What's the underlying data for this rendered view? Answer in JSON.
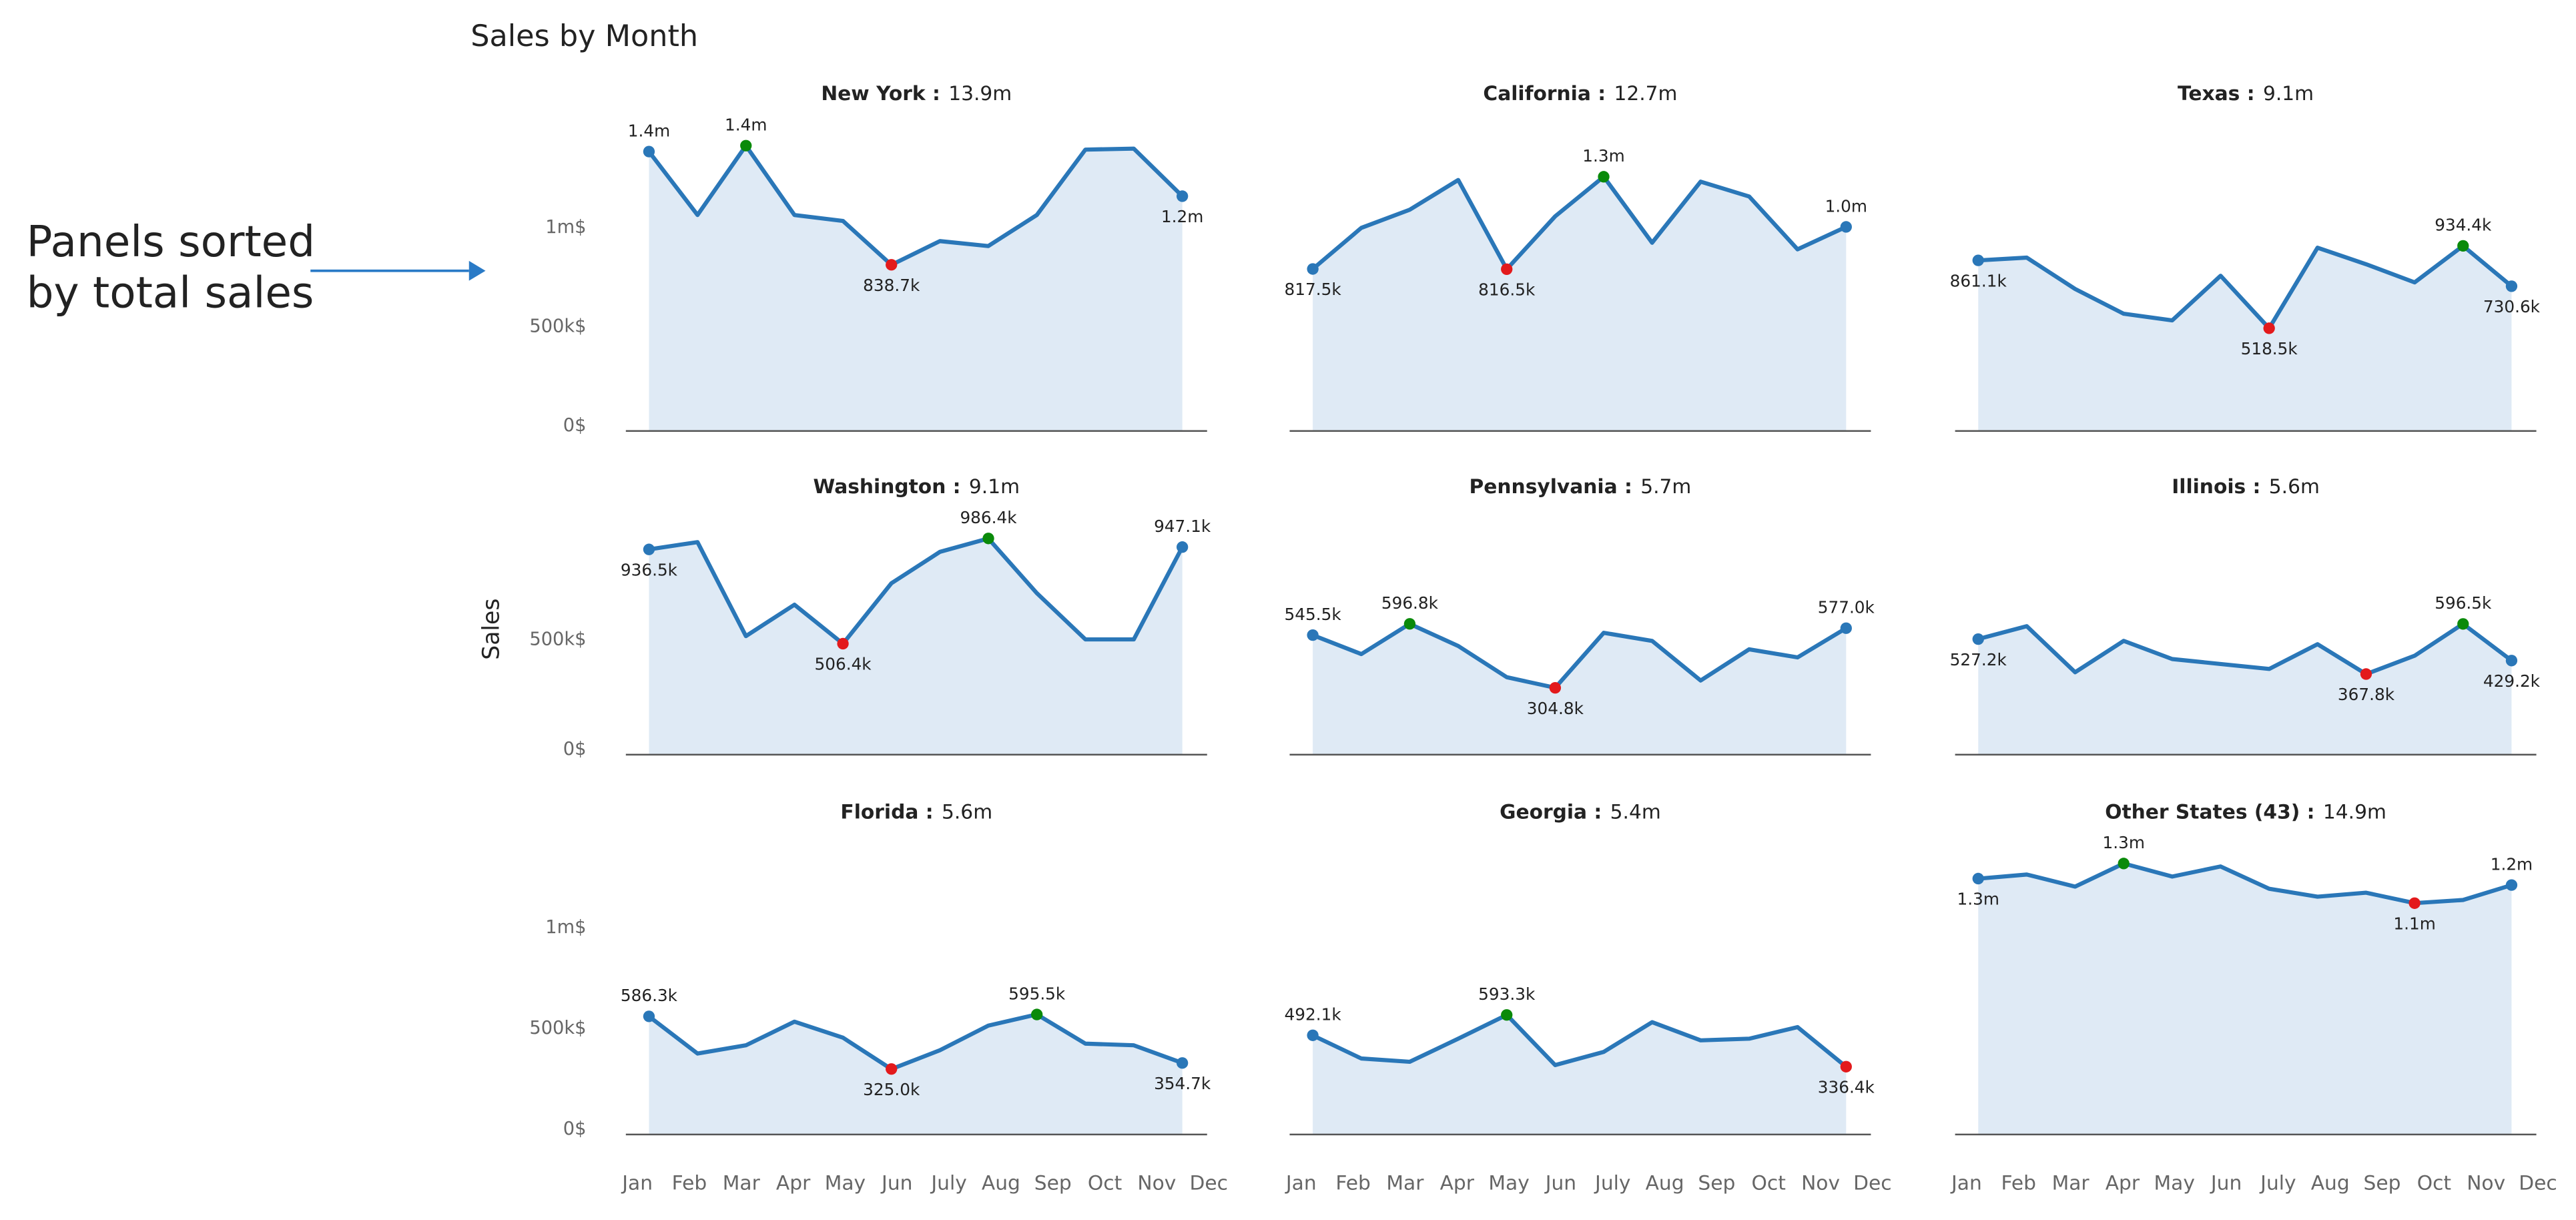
{
  "title": "Sales by Month",
  "annotation": [
    "Panels sorted",
    "by total sales"
  ],
  "ylabel": "Sales",
  "chart_data": [
    {
      "type": "area",
      "title": "New York :",
      "total": "13.9m",
      "color": "#2a77b8",
      "fill": "#dfeaf5",
      "max_color": "#0a8a0a",
      "min_color": "#e31a1c",
      "values": [
        1410000,
        1090000,
        1440000,
        1090000,
        1060000,
        838700,
        958000,
        933000,
        1090000,
        1420000,
        1425000,
        1185000
      ],
      "value_labels": [
        "1.4m",
        null,
        "1.4m",
        null,
        null,
        "838.7k",
        null,
        null,
        null,
        null,
        null,
        "1.2m"
      ],
      "ylim": [
        0,
        1600000
      ],
      "yticks": [
        {
          "value": 0,
          "label": "0$"
        },
        {
          "value": 500000,
          "label": "500k$"
        },
        {
          "value": 1000000,
          "label": "1m$"
        }
      ]
    },
    {
      "type": "area",
      "title": "California :",
      "total": "12.7m",
      "color": "#2a77b8",
      "fill": "#dfeaf5",
      "max_color": "#0a8a0a",
      "min_color": "#e31a1c",
      "values": [
        817500,
        1025000,
        1117000,
        1267000,
        816500,
        1083000,
        1283000,
        950000,
        1258000,
        1183000,
        917000,
        1030000
      ],
      "value_labels": [
        "817.5k",
        null,
        null,
        null,
        "816.5k",
        null,
        "1.3m",
        null,
        null,
        null,
        null,
        "1.0m"
      ],
      "ylim": [
        0,
        1600000
      ]
    },
    {
      "type": "area",
      "title": "Texas :",
      "total": "9.1m",
      "color": "#2a77b8",
      "fill": "#dfeaf5",
      "max_color": "#0a8a0a",
      "min_color": "#e31a1c",
      "values": [
        861100,
        875000,
        717000,
        592000,
        558000,
        783000,
        518500,
        925000,
        842000,
        750000,
        934400,
        730600
      ],
      "value_labels": [
        "861.1k",
        null,
        null,
        null,
        null,
        null,
        "518.5k",
        null,
        null,
        null,
        "934.4k",
        "730.6k"
      ],
      "ylim": [
        0,
        1600000
      ]
    },
    {
      "type": "area",
      "title": "Washington :",
      "total": "9.1m",
      "color": "#2a77b8",
      "fill": "#dfeaf5",
      "max_color": "#0a8a0a",
      "min_color": "#e31a1c",
      "values": [
        936500,
        970000,
        541000,
        684000,
        506400,
        782000,
        925000,
        986400,
        737000,
        526000,
        526000,
        947100
      ],
      "value_labels": [
        "936.5k",
        null,
        null,
        null,
        "506.4k",
        null,
        null,
        "986.4k",
        null,
        null,
        null,
        "947.1k"
      ],
      "ylim": [
        0,
        1100000
      ],
      "yticks": [
        {
          "value": 0,
          "label": "0$"
        },
        {
          "value": 500000,
          "label": "500k$"
        }
      ]
    },
    {
      "type": "area",
      "title": "Pennsylvania :",
      "total": "5.7m",
      "color": "#2a77b8",
      "fill": "#dfeaf5",
      "max_color": "#0a8a0a",
      "min_color": "#e31a1c",
      "values": [
        545500,
        459000,
        596800,
        496000,
        353000,
        304800,
        556000,
        519000,
        338000,
        481000,
        444000,
        577000
      ],
      "value_labels": [
        "545.5k",
        null,
        "596.8k",
        null,
        null,
        "304.8k",
        null,
        null,
        null,
        null,
        null,
        "577.0k"
      ],
      "ylim": [
        0,
        1100000
      ]
    },
    {
      "type": "area",
      "title": "Illinois :",
      "total": "5.6m",
      "color": "#2a77b8",
      "fill": "#dfeaf5",
      "max_color": "#0a8a0a",
      "min_color": "#e31a1c",
      "values": [
        527200,
        586000,
        376000,
        519000,
        436000,
        414000,
        391000,
        504000,
        367800,
        451000,
        596500,
        429200
      ],
      "value_labels": [
        "527.2k",
        null,
        null,
        null,
        null,
        null,
        null,
        null,
        "367.8k",
        null,
        "596.5k",
        "429.2k"
      ],
      "ylim": [
        0,
        1100000
      ]
    },
    {
      "type": "area",
      "title": "Florida :",
      "total": "5.6m",
      "color": "#2a77b8",
      "fill": "#dfeaf5",
      "max_color": "#0a8a0a",
      "min_color": "#e31a1c",
      "categories": [
        "Jan",
        "Feb",
        "Mar",
        "Apr",
        "May",
        "Jun",
        "July",
        "Aug",
        "Sep",
        "Oct",
        "Nov",
        "Dec"
      ],
      "values": [
        586300,
        402000,
        443000,
        560000,
        480000,
        325000,
        418000,
        540000,
        595500,
        451000,
        443000,
        354700
      ],
      "value_labels": [
        "586.3k",
        null,
        null,
        null,
        null,
        "325.0k",
        null,
        null,
        "595.5k",
        null,
        null,
        "354.7k"
      ],
      "ylim": [
        0,
        1500000
      ],
      "yticks": [
        {
          "value": 0,
          "label": "0$"
        },
        {
          "value": 500000,
          "label": "500k$"
        },
        {
          "value": 1000000,
          "label": "1m$"
        }
      ]
    },
    {
      "type": "area",
      "title": "Georgia :",
      "total": "5.4m",
      "color": "#2a77b8",
      "fill": "#dfeaf5",
      "max_color": "#0a8a0a",
      "min_color": "#e31a1c",
      "categories": [
        "Jan",
        "Feb",
        "Mar",
        "Apr",
        "May",
        "Jun",
        "July",
        "Aug",
        "Sep",
        "Oct",
        "Nov",
        "Dec"
      ],
      "values": [
        492100,
        377000,
        361000,
        475000,
        593300,
        344000,
        410000,
        557000,
        467000,
        475000,
        533000,
        336400
      ],
      "value_labels": [
        "492.1k",
        null,
        null,
        null,
        "593.3k",
        null,
        null,
        null,
        null,
        null,
        null,
        "336.4k"
      ],
      "ylim": [
        0,
        1500000
      ]
    },
    {
      "type": "area",
      "title": "Other States (43) :",
      "total": "14.9m",
      "color": "#2a77b8",
      "fill": "#dfeaf5",
      "max_color": "#0a8a0a",
      "min_color": "#e31a1c",
      "categories": [
        "Jan",
        "Feb",
        "Mar",
        "Apr",
        "May",
        "Jun",
        "July",
        "Aug",
        "Sep",
        "Oct",
        "Nov",
        "Dec"
      ],
      "values": [
        1270000,
        1290000,
        1230000,
        1345000,
        1280000,
        1330000,
        1220000,
        1180000,
        1200000,
        1148000,
        1164000,
        1238000
      ],
      "value_labels": [
        "1.3m",
        null,
        null,
        "1.3m",
        null,
        null,
        null,
        null,
        null,
        "1.1m",
        null,
        "1.2m"
      ],
      "ylim": [
        0,
        1500000
      ]
    }
  ]
}
